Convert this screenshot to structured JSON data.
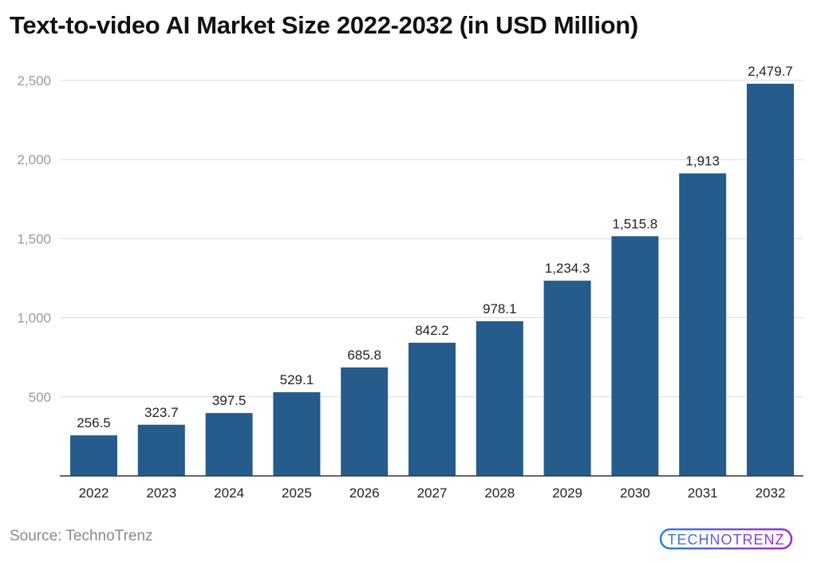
{
  "chart_data": {
    "type": "bar",
    "title": "Text-to-video AI Market Size 2022-2032 (in USD Million)",
    "categories": [
      "2022",
      "2023",
      "2024",
      "2025",
      "2026",
      "2027",
      "2028",
      "2029",
      "2030",
      "2031",
      "2032"
    ],
    "values": [
      256.5,
      323.7,
      397.5,
      529.1,
      685.8,
      842.2,
      978.1,
      1234.3,
      1515.8,
      1913,
      2479.7
    ],
    "data_labels": [
      "256.5",
      "323.7",
      "397.5",
      "529.1",
      "685.8",
      "842.2",
      "978.1",
      "1,234.3",
      "1,515.8",
      "1,913",
      "2,479.7"
    ],
    "xlabel": "",
    "ylabel": "",
    "ylim": [
      0,
      2500
    ],
    "yticks": [
      500,
      1000,
      1500,
      2000,
      2500
    ],
    "ytick_labels": [
      "500",
      "1,000",
      "1,500",
      "2,000",
      "2,500"
    ],
    "grid": true,
    "bar_color": "#255c8c"
  },
  "source": "Source: TechnoTrenz",
  "logo_text": "TECHNOTRENZ"
}
